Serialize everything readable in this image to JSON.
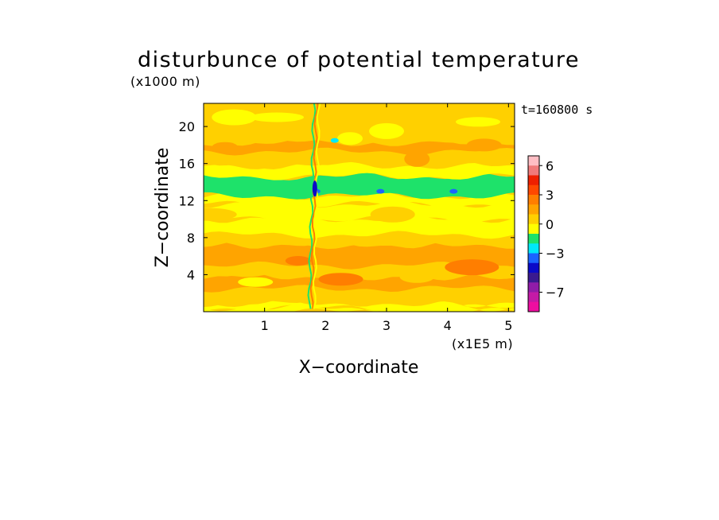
{
  "chart_data": {
    "type": "heatmap",
    "title": "disturbunce of potential temperature",
    "time_label": "t=160800 s",
    "xlabel": "X−coordinate",
    "x_unit_label": "(x1E5 m)",
    "ylabel": "Z−coordinate",
    "y_unit_label": "(x1000 m)",
    "xlim": [
      0,
      5.1
    ],
    "ylim": [
      0,
      22.5
    ],
    "xticks": [
      1,
      2,
      3,
      4,
      5
    ],
    "yticks": [
      4,
      8,
      12,
      16,
      20
    ],
    "grid": false,
    "colorbar": {
      "levels": [
        -9,
        -8,
        -7,
        -6,
        -5,
        -4,
        -3,
        -2,
        -1,
        0,
        1,
        2,
        3,
        4,
        5,
        6,
        7
      ],
      "colors": [
        "#ee0ea0",
        "#c41aa6",
        "#901ca8",
        "#3a1a90",
        "#0a0ac8",
        "#1a64ff",
        "#00e8f8",
        "#1ee26a",
        "#ffff00",
        "#ffd000",
        "#ffa400",
        "#ff7e00",
        "#ff4800",
        "#ee2000",
        "#f07a7a",
        "#ffbec4"
      ],
      "tick_labels": [
        "6",
        "3",
        "0",
        "−3",
        "−7"
      ],
      "tick_values": [
        6,
        3,
        0,
        -3,
        -7
      ]
    },
    "background_level": 0.5,
    "bands": [
      {
        "z0": 0.0,
        "z1": 0.4,
        "value": -0.5
      },
      {
        "z0": 0.4,
        "z1": 0.9,
        "value": -0.5
      },
      {
        "z0": 0.9,
        "z1": 2.5,
        "value": 0.5
      },
      {
        "z0": 2.5,
        "z1": 3.8,
        "value": 1.5
      },
      {
        "z0": 3.8,
        "z1": 5.0,
        "value": 0.5
      },
      {
        "z0": 5.0,
        "z1": 7.2,
        "value": 1.5
      },
      {
        "z0": 7.2,
        "z1": 8.3,
        "value": 0.5
      },
      {
        "z0": 8.3,
        "z1": 10.0,
        "value": -0.5
      },
      {
        "z0": 10.0,
        "z1": 11.6,
        "value": -0.5
      },
      {
        "z0": 11.6,
        "z1": 12.5,
        "value": -0.5
      },
      {
        "z0": 12.5,
        "z1": 14.6,
        "value": -1.5
      },
      {
        "z0": 14.6,
        "z1": 15.8,
        "value": -0.5
      },
      {
        "z0": 15.8,
        "z1": 17.3,
        "value": 0.5
      },
      {
        "z0": 17.3,
        "z1": 18.3,
        "value": 1.5
      },
      {
        "z0": 18.3,
        "z1": 19.3,
        "value": 0.5
      },
      {
        "z0": 19.3,
        "z1": 22.5,
        "value": 0.5
      }
    ],
    "patches": [
      {
        "x": 0.35,
        "z": 17.8,
        "value": 1.5
      },
      {
        "x": 4.6,
        "z": 18.0,
        "value": 1.5
      },
      {
        "x": 0.5,
        "z": 21.0,
        "value": -0.5
      },
      {
        "x": 1.2,
        "z": 21.0,
        "value": -0.5
      },
      {
        "x": 2.4,
        "z": 18.7,
        "value": -0.5
      },
      {
        "x": 3.0,
        "z": 19.5,
        "value": -0.5
      },
      {
        "x": 4.5,
        "z": 20.5,
        "value": -0.5
      },
      {
        "x": 0.1,
        "z": 10.5,
        "value": 0.5
      },
      {
        "x": 3.5,
        "z": 16.5,
        "value": 1.5
      },
      {
        "x": 0.85,
        "z": 3.2,
        "value": -0.5
      },
      {
        "x": 2.25,
        "z": 3.5,
        "value": 2.5
      },
      {
        "x": 4.4,
        "z": 4.8,
        "value": 2.5
      },
      {
        "x": 1.55,
        "z": 5.5,
        "value": 2.5
      },
      {
        "x": 3.5,
        "z": 3.8,
        "value": 0.5
      },
      {
        "x": 3.1,
        "z": 10.5,
        "value": 0.5
      },
      {
        "x": 1.85,
        "z": 13.0,
        "value": -3.5
      },
      {
        "x": 4.1,
        "z": 13.0,
        "value": -3.5
      },
      {
        "x": 2.9,
        "z": 13.0,
        "value": -3.5
      },
      {
        "x": 2.15,
        "z": 18.5,
        "value": -2.5
      }
    ],
    "vertical_disturbance": {
      "x": 1.85,
      "z_range": [
        0.3,
        22.5
      ],
      "values": [
        -1.5,
        2.5,
        -0.5
      ]
    }
  }
}
